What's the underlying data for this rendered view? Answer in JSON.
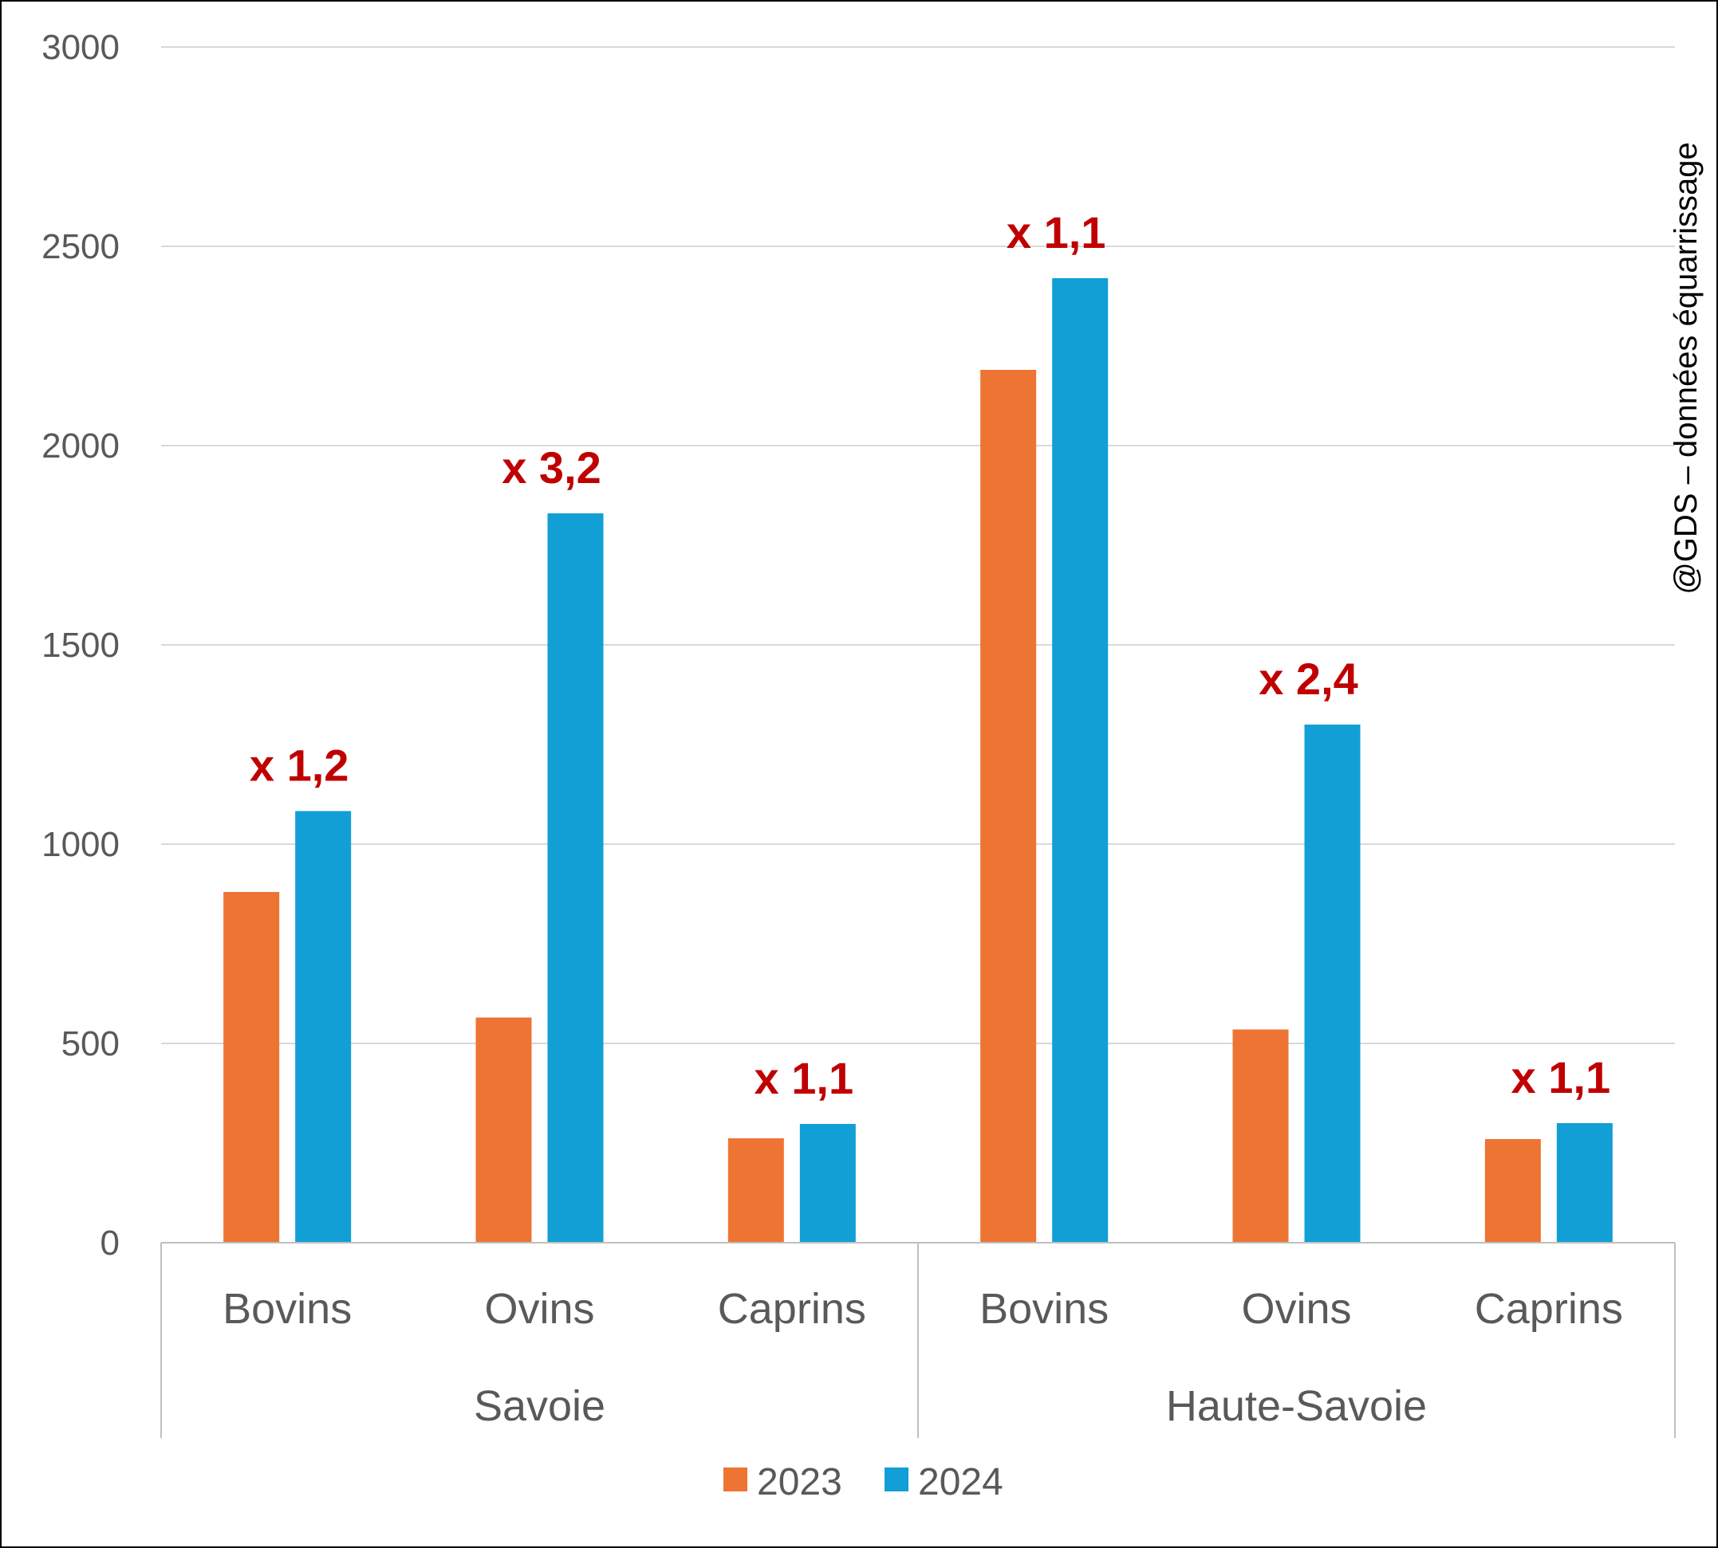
{
  "chart_data": {
    "type": "bar",
    "groups": [
      {
        "name": "Savoie",
        "categories": [
          "Bovins",
          "Ovins",
          "Caprins"
        ]
      },
      {
        "name": "Haute-Savoie",
        "categories": [
          "Bovins",
          "Ovins",
          "Caprins"
        ]
      }
    ],
    "series": [
      {
        "name": "2023",
        "color": "#ed7433",
        "values": [
          880,
          565,
          262,
          2190,
          535,
          260
        ]
      },
      {
        "name": "2024",
        "color": "#119fd6",
        "values": [
          1083,
          1830,
          298,
          2420,
          1300,
          300
        ]
      }
    ],
    "annotations": [
      "x 1,2",
      "x 3,2",
      "x 1,1",
      "x 1,1",
      "x 2,4",
      "x 1,1"
    ],
    "ylim": [
      0,
      3000
    ],
    "yticks": [
      0,
      500,
      1000,
      1500,
      2000,
      2500,
      3000
    ],
    "grid": true,
    "legend": "bottom",
    "watermark": "@GDS – données équarrissage",
    "annotation_color": "#c00000"
  }
}
